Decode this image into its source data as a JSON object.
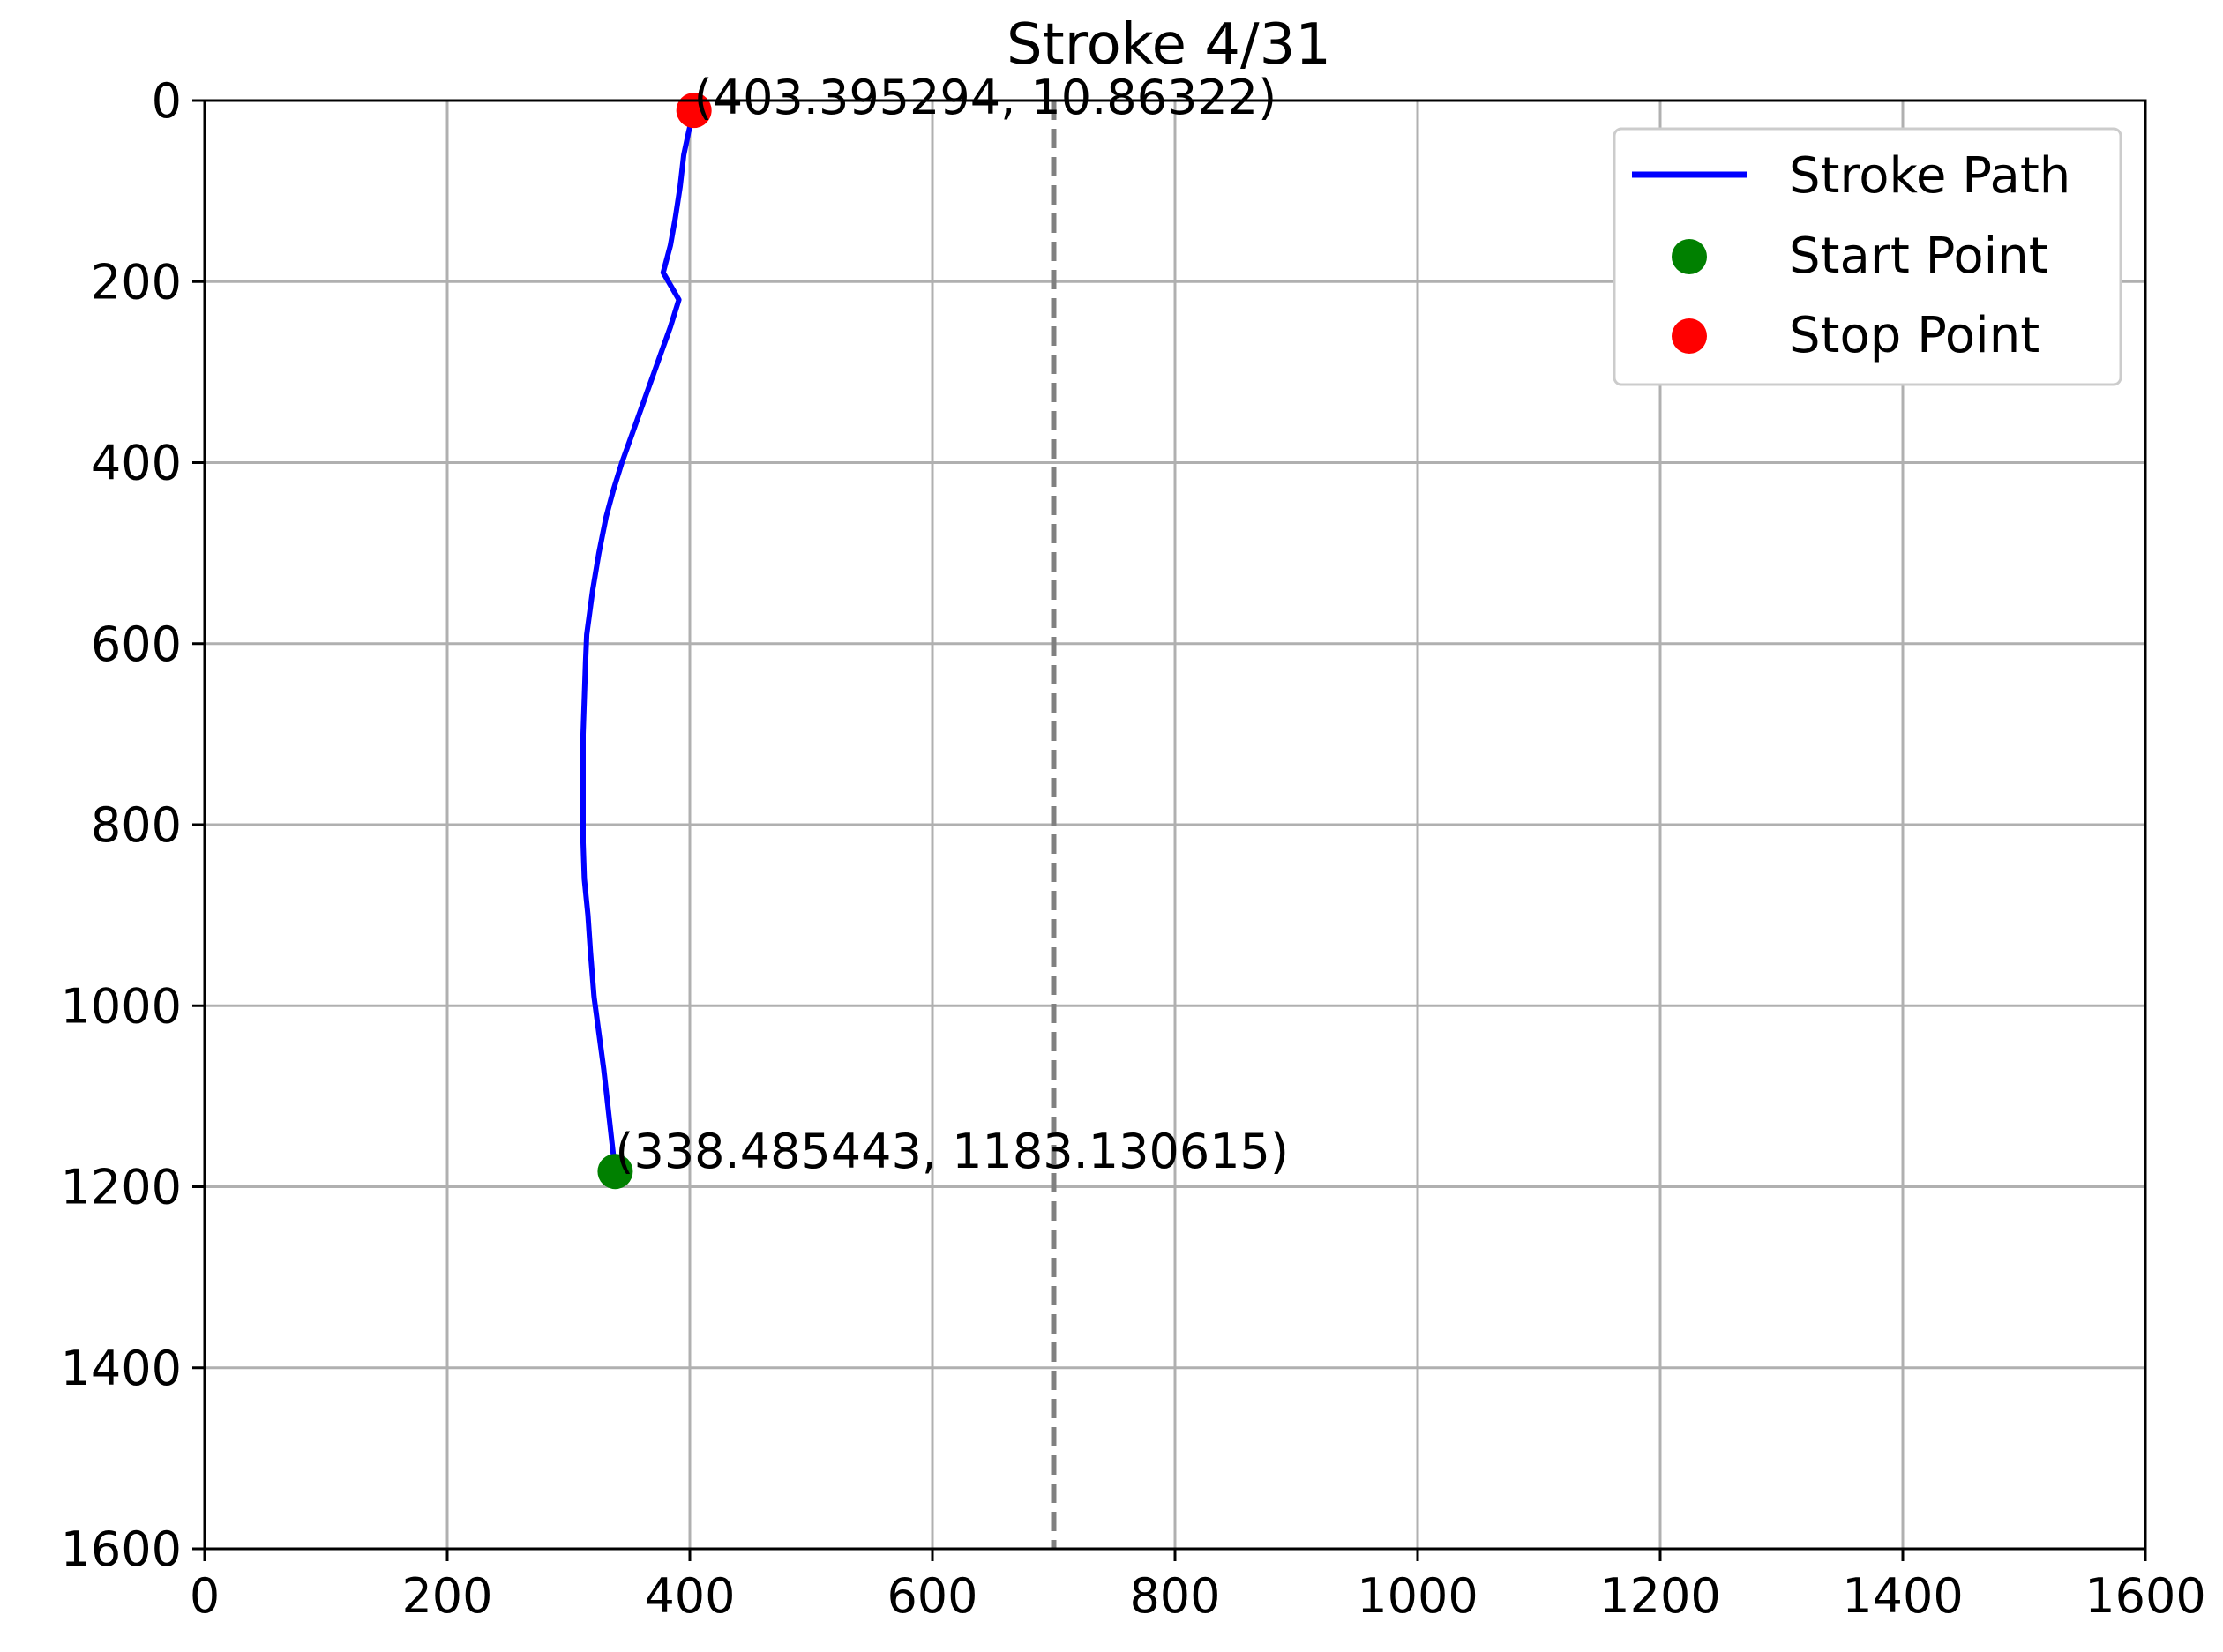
{
  "chart_data": {
    "type": "line",
    "title": "Stroke 4/31",
    "xlim": [
      0,
      1600
    ],
    "ylim": [
      1600,
      0
    ],
    "y_inverted": true,
    "x_ticks": [
      0,
      200,
      400,
      600,
      800,
      1000,
      1200,
      1400,
      1600
    ],
    "y_ticks": [
      0,
      200,
      400,
      600,
      800,
      1000,
      1200,
      1400,
      1600
    ],
    "grid": true,
    "legend_position": "top-right",
    "vertical_reference_line": {
      "x": 700,
      "style": "dashed",
      "color": "#808080"
    },
    "series": [
      {
        "name": "Stroke Path",
        "color": "#0000ff",
        "points": [
          [
            338.485443,
            1183.130615
          ],
          [
            334,
            1130
          ],
          [
            329,
            1070
          ],
          [
            324,
            1020
          ],
          [
            321,
            990
          ],
          [
            318,
            940
          ],
          [
            316,
            900
          ],
          [
            313,
            860
          ],
          [
            312,
            820
          ],
          [
            312,
            780
          ],
          [
            312,
            740
          ],
          [
            312,
            700
          ],
          [
            313,
            660
          ],
          [
            314,
            620
          ],
          [
            315,
            590
          ],
          [
            320,
            540
          ],
          [
            325,
            500
          ],
          [
            331,
            460
          ],
          [
            337,
            430
          ],
          [
            344,
            400
          ],
          [
            352,
            370
          ],
          [
            360,
            340
          ],
          [
            368,
            310
          ],
          [
            376,
            280
          ],
          [
            384,
            250
          ],
          [
            391,
            220
          ],
          [
            378,
            190
          ],
          [
            384,
            160
          ],
          [
            388,
            130
          ],
          [
            392,
            95
          ],
          [
            395,
            60
          ],
          [
            399,
            35
          ],
          [
            403.395294,
            10.86322
          ]
        ]
      }
    ],
    "start_point": {
      "name": "Start Point",
      "x": 338.485443,
      "y": 1183.130615,
      "color": "#008000",
      "label": "(338.485443, 1183.130615)"
    },
    "stop_point": {
      "name": "Stop Point",
      "x": 403.395294,
      "y": 10.86322,
      "color": "#ff0000",
      "label": "(403.395294, 10.86322)"
    }
  }
}
